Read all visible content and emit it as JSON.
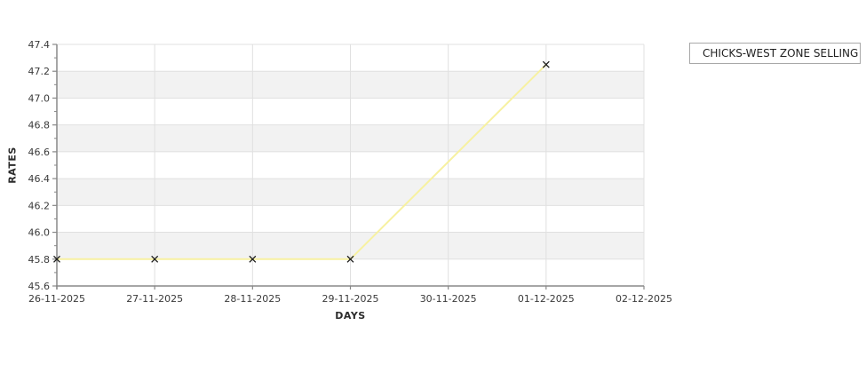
{
  "chart_data": {
    "type": "line",
    "title": "",
    "xlabel": "DAYS",
    "ylabel": "RATES",
    "categories": [
      "26-11-2025",
      "27-11-2025",
      "28-11-2025",
      "29-11-2025",
      "30-11-2025",
      "01-12-2025",
      "02-12-2025"
    ],
    "series": [
      {
        "name": "CHICKS-WEST ZONE SELLING",
        "marker": "x",
        "points": [
          {
            "x": "26-11-2025",
            "y": 45.8
          },
          {
            "x": "27-11-2025",
            "y": 45.8
          },
          {
            "x": "28-11-2025",
            "y": 45.8
          },
          {
            "x": "29-11-2025",
            "y": 45.8
          },
          {
            "x": "01-12-2025",
            "y": 47.25
          }
        ]
      }
    ],
    "ylim": [
      45.6,
      47.4
    ],
    "ytick_step": 0.2,
    "ytick_labels": [
      "45.6",
      "45.8",
      "46.0",
      "46.2",
      "46.4",
      "46.6",
      "46.8",
      "47.0",
      "47.2",
      "47.4"
    ],
    "grid": true,
    "band_fill": true,
    "legend_position": "outside-top-right"
  },
  "colors": {
    "series_line": "#f7f1a1",
    "marker": "#1a1a1a",
    "band_gray": "#f2f2f2",
    "gridline": "#e0e0e0",
    "axis_line": "#888888",
    "tick_text": "#3a3a3a",
    "legend_border": "#a8a8a8",
    "background": "#ffffff"
  }
}
